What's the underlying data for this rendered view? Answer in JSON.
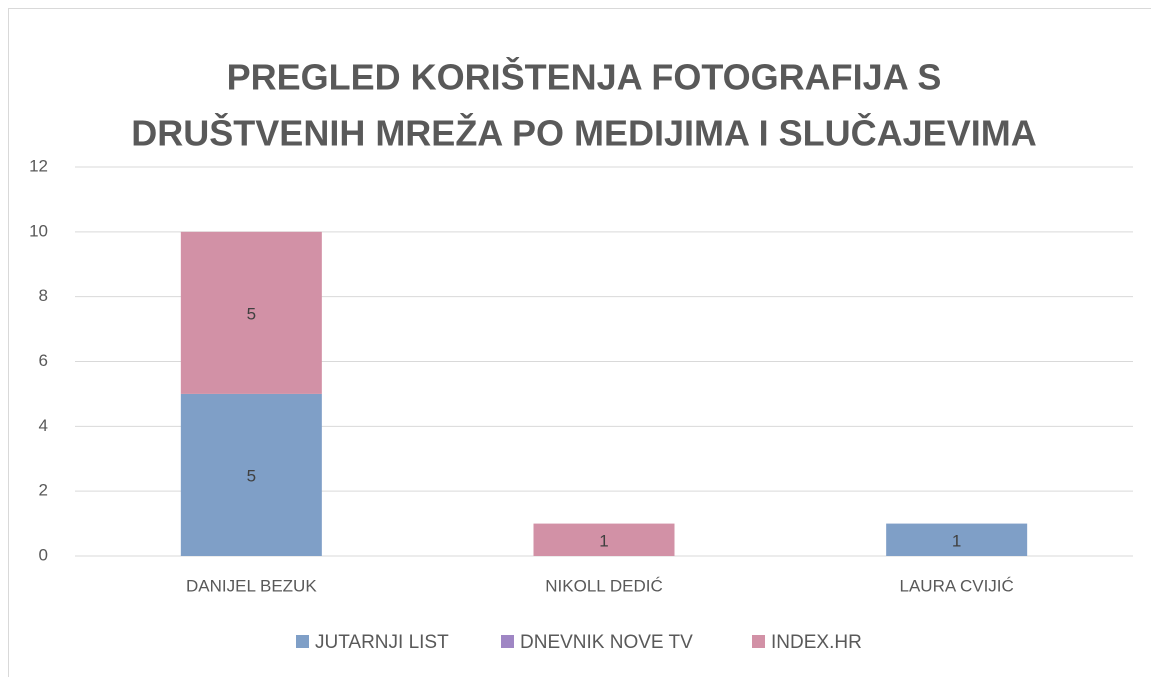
{
  "chart_data": {
    "type": "stacked_bar",
    "title": [
      "PREGLED KORIŠTENJA FOTOGRAFIJA S",
      "DRUŠTVENIH MREŽA PO MEDIJIMA I SLUČAJEVIMA"
    ],
    "categories": [
      "DANIJEL BEZUK",
      "NIKOLL DEDIĆ",
      "LAURA CVIJIĆ"
    ],
    "series": [
      {
        "name": "JUTARNJI LIST",
        "color": "#7f9fc7",
        "values": [
          5,
          0,
          1
        ]
      },
      {
        "name": "DNEVNIK NOVE TV",
        "color": "#9f86c4",
        "values": [
          0,
          0,
          0
        ]
      },
      {
        "name": "INDEX.HR",
        "color": "#d291a6",
        "values": [
          5,
          1,
          0
        ]
      }
    ],
    "ylim": [
      0,
      12
    ],
    "yticks": [
      0,
      2,
      4,
      6,
      8,
      10,
      12
    ],
    "grid": true,
    "legend": "bottom"
  }
}
